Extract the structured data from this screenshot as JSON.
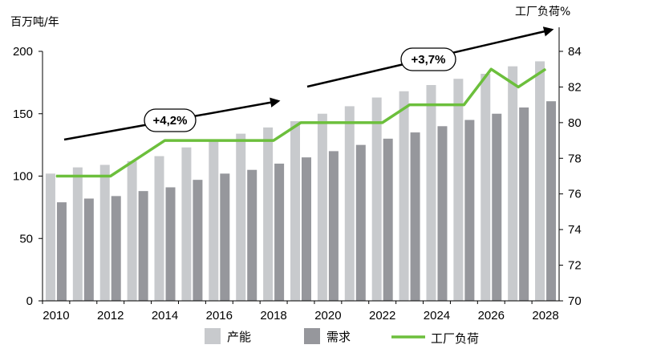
{
  "chart_data": {
    "type": "bar",
    "title": "",
    "ylabel_left": "百万吨/年",
    "ylabel_right": "工厂负荷%",
    "x": [
      2010,
      2011,
      2012,
      2013,
      2014,
      2015,
      2016,
      2017,
      2018,
      2019,
      2020,
      2021,
      2022,
      2023,
      2024,
      2025,
      2026,
      2027,
      2028
    ],
    "x_tick_labels": [
      "2010",
      "2012",
      "2014",
      "2016",
      "2018",
      "2020",
      "2022",
      "2024",
      "2026",
      "2028"
    ],
    "ylim_left": [
      0,
      200
    ],
    "yticks_left": [
      0,
      50,
      100,
      150,
      200
    ],
    "ylim_right": [
      70,
      84
    ],
    "yticks_right": [
      70,
      72,
      74,
      76,
      78,
      80,
      82,
      84
    ],
    "grid": false,
    "legend_position": "bottom",
    "series": [
      {
        "name": "产能",
        "type": "bar",
        "axis": "left",
        "color": "#c8cacd",
        "values": [
          102,
          107,
          109,
          112,
          116,
          123,
          129,
          134,
          139,
          144,
          150,
          156,
          163,
          168,
          173,
          178,
          182,
          188,
          192
        ]
      },
      {
        "name": "需求",
        "type": "bar",
        "axis": "left",
        "color": "#96979c",
        "values": [
          79,
          82,
          84,
          88,
          91,
          97,
          102,
          105,
          110,
          115,
          120,
          125,
          130,
          135,
          140,
          145,
          150,
          155,
          160
        ]
      },
      {
        "name": "工厂负荷",
        "type": "line",
        "axis": "right",
        "color": "#6cbf3c",
        "values": [
          77,
          77,
          77,
          78,
          79,
          79,
          79,
          79,
          79,
          80,
          80,
          80,
          80,
          81,
          81,
          81,
          83,
          82,
          83
        ]
      }
    ],
    "annotations": [
      {
        "text": "+4,2%",
        "from_year": 2010,
        "to_year": 2018
      },
      {
        "text": "+3,7%",
        "from_year": 2019,
        "to_year": 2028
      }
    ]
  }
}
